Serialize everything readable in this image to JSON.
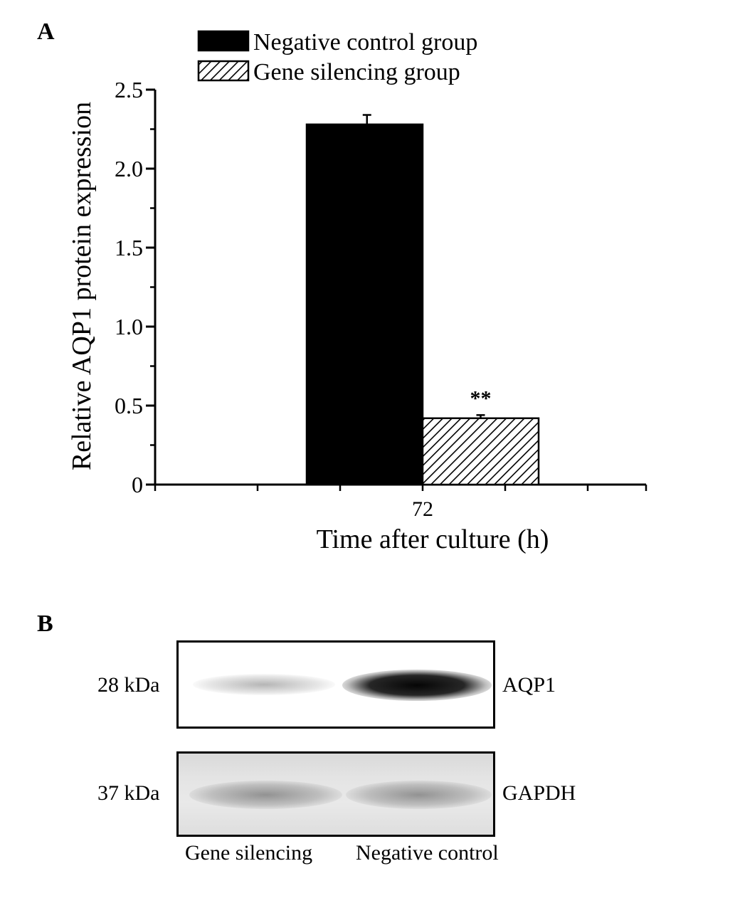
{
  "panel_a": {
    "letter": "A"
  },
  "panel_b": {
    "letter": "B",
    "blots": [
      {
        "marker": "28 kDa",
        "protein": "AQP1"
      },
      {
        "marker": "37 kDa",
        "protein": "GAPDH"
      }
    ],
    "lanes": [
      "Gene silencing",
      "Negative control"
    ]
  },
  "chart_data": {
    "type": "bar",
    "categories": [
      "72"
    ],
    "series": [
      {
        "name": "Negative control group",
        "values": [
          2.28
        ],
        "error": [
          0.06
        ],
        "fill": "#000000",
        "pattern": "solid"
      },
      {
        "name": "Gene silencing group",
        "values": [
          0.42
        ],
        "error": [
          0.02
        ],
        "fill": "#ffffff",
        "pattern": "diagonal-hatch",
        "annotation": "**"
      }
    ],
    "title": "",
    "xlabel": "Time after culture (h)",
    "ylabel": "Relative AQP1 protein expression",
    "ylim": [
      0,
      2.5
    ],
    "yticks": [
      0,
      0.5,
      1.0,
      1.5,
      2.0,
      2.5
    ],
    "ytick_labels": [
      "0",
      "0.5",
      "1.0",
      "1.5",
      "2.0",
      "2.5"
    ],
    "grid": false,
    "legend_position": "top"
  }
}
